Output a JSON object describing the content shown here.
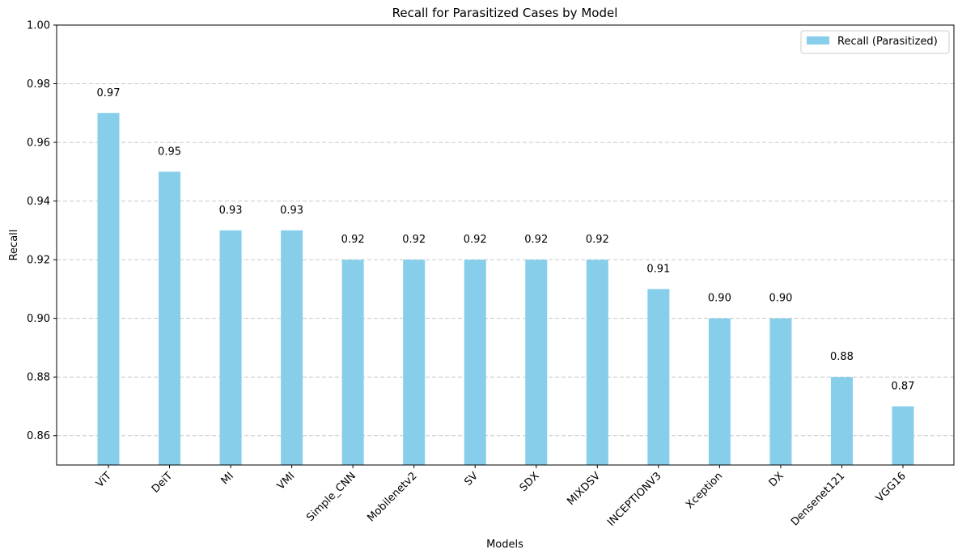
{
  "chart_data": {
    "type": "bar",
    "title": "Recall for Parasitized Cases by Model",
    "xlabel": "Models",
    "ylabel": "Recall",
    "categories": [
      "ViT",
      "DeiT",
      "MI",
      "VMI",
      "Simple_CNN",
      "Mobilenetv2",
      "SV",
      "SDX",
      "MIXDSV",
      "INCEPTIONV3",
      "Xception",
      "DX",
      "Densenet121",
      "VGG16"
    ],
    "series": [
      {
        "name": "Recall (Parasitized)",
        "color": "#87ceeb",
        "values": [
          0.97,
          0.95,
          0.93,
          0.93,
          0.92,
          0.92,
          0.92,
          0.92,
          0.92,
          0.91,
          0.9,
          0.9,
          0.88,
          0.87
        ],
        "data_labels": [
          "0.97",
          "0.95",
          "0.93",
          "0.93",
          "0.92",
          "0.92",
          "0.92",
          "0.92",
          "0.92",
          "0.91",
          "0.90",
          "0.90",
          "0.88",
          "0.87"
        ]
      }
    ],
    "ylim": [
      0.85,
      1.0
    ],
    "yticks": [
      0.86,
      0.88,
      0.9,
      0.92,
      0.94,
      0.96,
      0.98,
      1.0
    ],
    "ytick_labels": [
      "0.86",
      "0.88",
      "0.90",
      "0.92",
      "0.94",
      "0.96",
      "0.98",
      "1.00"
    ],
    "grid": "y-dashed",
    "legend_position": "top-right"
  }
}
